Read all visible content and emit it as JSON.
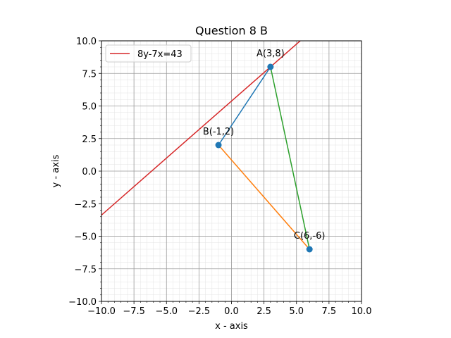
{
  "chart_data": {
    "type": "line",
    "title": "Question 8 B",
    "xlabel": "x - axis",
    "ylabel": "y - axis",
    "xlim": [
      -10,
      10
    ],
    "ylim": [
      -10,
      10
    ],
    "xticks": [
      -10,
      -7.5,
      -5,
      -2.5,
      0,
      2.5,
      5,
      7.5,
      10
    ],
    "yticks": [
      -10,
      -7.5,
      -5,
      -2.5,
      0,
      2.5,
      5,
      7.5,
      10
    ],
    "xtick_labels": [
      "−10.0",
      "−7.5",
      "−5.0",
      "−2.5",
      "0.0",
      "2.5",
      "5.0",
      "7.5",
      "10.0"
    ],
    "ytick_labels": [
      "−10.0",
      "−7.5",
      "−5.0",
      "−2.5",
      "0.0",
      "2.5",
      "5.0",
      "7.5",
      "10.0"
    ],
    "grid": {
      "major": true,
      "minor": true,
      "minor_step": 0.5
    },
    "legend_position": "top-left",
    "points": [
      {
        "label": "A(3,8)",
        "x": 3,
        "y": 8
      },
      {
        "label": "B(-1,2)",
        "x": -1,
        "y": 2
      },
      {
        "label": "C(6,-6)",
        "x": 6,
        "y": -6
      }
    ],
    "series": [
      {
        "name": "8y-7x=43",
        "color": "#d62728",
        "x": [
          -10,
          10
        ],
        "y": [
          -3.375,
          14.125
        ]
      },
      {
        "color": "#1f77b4",
        "x": [
          3,
          -1
        ],
        "y": [
          8,
          2
        ]
      },
      {
        "color": "#ff7f0e",
        "x": [
          -1,
          6
        ],
        "y": [
          2,
          -6
        ]
      },
      {
        "color": "#2ca02c",
        "x": [
          3,
          6
        ],
        "y": [
          8,
          -6
        ]
      }
    ],
    "marker_color": "#1f77b4"
  }
}
